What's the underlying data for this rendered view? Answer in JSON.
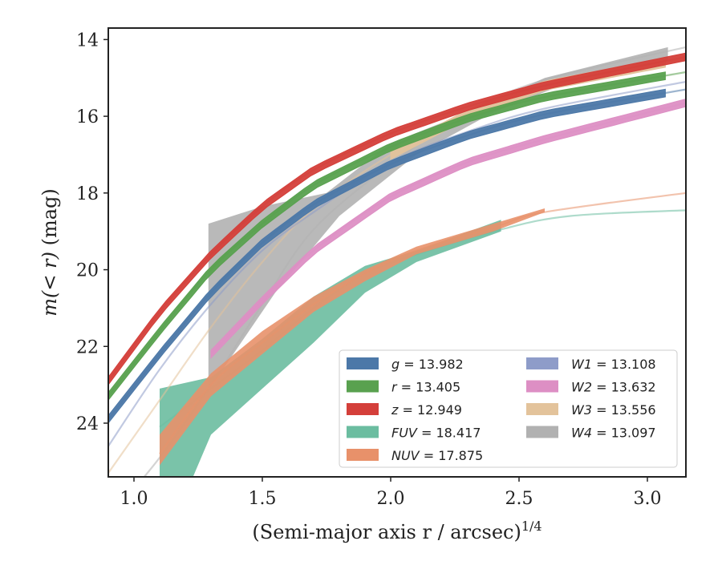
{
  "chart_data": {
    "type": "line",
    "xlabel": "(Semi-major axis r / arcsec)",
    "xlabel_sup": "1/4",
    "ylabel_pre": "m(< r)",
    "ylabel_post": "(mag)",
    "xlim": [
      0.9,
      3.15
    ],
    "ylim": [
      25.4,
      13.7
    ],
    "y_inverted": true,
    "xticks": [
      1.0,
      1.5,
      2.0,
      2.5,
      3.0
    ],
    "xtick_labels": [
      "1.0",
      "1.5",
      "2.0",
      "2.5",
      "3.0"
    ],
    "yticks": [
      14,
      16,
      18,
      20,
      22,
      24
    ],
    "ytick_labels": [
      "14",
      "16",
      "18",
      "20",
      "22",
      "24"
    ],
    "legend_position": "lower-right",
    "legend_columns": 2,
    "series": [
      {
        "name": "g = 13.982",
        "band": "g",
        "mag": "13.982",
        "color": "#4c78a8",
        "line": [
          [
            0.9,
            23.9
          ],
          [
            1.1,
            22.2
          ],
          [
            1.3,
            20.6
          ],
          [
            1.5,
            19.3
          ],
          [
            1.7,
            18.3
          ],
          [
            2.0,
            17.25
          ],
          [
            2.3,
            16.5
          ],
          [
            2.6,
            15.95
          ],
          [
            3.15,
            15.3
          ]
        ],
        "obs_x": [
          0.9,
          3.07
        ],
        "band_width": 0.1
      },
      {
        "name": "r = 13.405",
        "band": "r",
        "mag": "13.405",
        "color": "#59a14f",
        "line": [
          [
            0.9,
            23.3
          ],
          [
            1.1,
            21.6
          ],
          [
            1.3,
            20.0
          ],
          [
            1.5,
            18.8
          ],
          [
            1.7,
            17.8
          ],
          [
            2.0,
            16.8
          ],
          [
            2.3,
            16.05
          ],
          [
            2.6,
            15.5
          ],
          [
            3.15,
            14.85
          ]
        ],
        "obs_x": [
          0.9,
          3.07
        ],
        "band_width": 0.1
      },
      {
        "name": "z = 12.949",
        "band": "z",
        "mag": "12.949",
        "color": "#d43f3a",
        "line": [
          [
            0.9,
            22.9
          ],
          [
            1.1,
            21.1
          ],
          [
            1.3,
            19.6
          ],
          [
            1.5,
            18.35
          ],
          [
            1.7,
            17.4
          ],
          [
            2.0,
            16.45
          ],
          [
            2.3,
            15.75
          ],
          [
            2.6,
            15.2
          ],
          [
            3.15,
            14.45
          ]
        ],
        "obs_x": [
          0.9,
          3.15
        ],
        "band_width": 0.1
      },
      {
        "name": "FUV = 18.417",
        "band": "FUV",
        "mag": "18.417",
        "color": "#6bbda0",
        "line": [
          [
            1.1,
            24.1
          ],
          [
            1.3,
            23.1
          ],
          [
            1.5,
            22.1
          ],
          [
            1.7,
            21.0
          ],
          [
            1.9,
            20.1
          ],
          [
            2.1,
            19.6
          ],
          [
            2.43,
            18.95
          ],
          [
            2.7,
            18.6
          ],
          [
            3.15,
            18.45
          ]
        ],
        "obs_x": [
          1.1,
          2.43
        ],
        "band_upper": [
          [
            1.1,
            23.1
          ],
          [
            1.3,
            22.8
          ],
          [
            1.5,
            21.8
          ],
          [
            1.7,
            20.7
          ],
          [
            1.9,
            19.9
          ],
          [
            2.1,
            19.5
          ],
          [
            2.43,
            18.7
          ]
        ],
        "band_lower": [
          [
            1.1,
            25.4
          ],
          [
            1.23,
            25.4
          ],
          [
            1.3,
            24.3
          ],
          [
            1.5,
            23.1
          ],
          [
            1.7,
            21.9
          ],
          [
            1.9,
            20.6
          ],
          [
            2.1,
            19.8
          ],
          [
            2.43,
            19.0
          ]
        ]
      },
      {
        "name": "NUV = 17.875",
        "band": "NUV",
        "mag": "17.875",
        "color": "#e8916a",
        "line": [
          [
            1.1,
            24.8
          ],
          [
            1.3,
            23.0
          ],
          [
            1.5,
            21.9
          ],
          [
            1.7,
            20.9
          ],
          [
            1.9,
            20.1
          ],
          [
            2.1,
            19.5
          ],
          [
            2.4,
            18.9
          ],
          [
            2.6,
            18.5
          ],
          [
            3.15,
            18.0
          ]
        ],
        "obs_x": [
          1.1,
          2.6
        ],
        "band_upper": [
          [
            1.1,
            24.3
          ],
          [
            1.3,
            22.7
          ],
          [
            1.5,
            21.6
          ],
          [
            1.7,
            20.7
          ],
          [
            1.9,
            20.0
          ],
          [
            2.1,
            19.4
          ],
          [
            2.4,
            18.8
          ],
          [
            2.6,
            18.4
          ]
        ],
        "band_lower": [
          [
            1.1,
            25.1
          ],
          [
            1.3,
            23.3
          ],
          [
            1.5,
            22.2
          ],
          [
            1.7,
            21.1
          ],
          [
            1.9,
            20.3
          ],
          [
            2.1,
            19.6
          ],
          [
            2.4,
            19.0
          ],
          [
            2.6,
            18.5
          ]
        ]
      },
      {
        "name": "W1 = 13.108",
        "band": "W1",
        "mag": "13.108",
        "color": "#8e9cc9",
        "line": [
          [
            0.9,
            24.6
          ],
          [
            1.1,
            22.6
          ],
          [
            1.3,
            20.9
          ],
          [
            1.5,
            19.5
          ],
          [
            1.7,
            18.5
          ],
          [
            2.0,
            17.2
          ],
          [
            2.3,
            16.4
          ],
          [
            2.6,
            15.8
          ],
          [
            3.15,
            15.1
          ]
        ],
        "obs_x": null
      },
      {
        "name": "W2 = 13.632",
        "band": "W2",
        "mag": "13.632",
        "color": "#dd8fc4",
        "line": [
          [
            1.3,
            22.2
          ],
          [
            1.5,
            20.8
          ],
          [
            1.7,
            19.5
          ],
          [
            2.0,
            18.1
          ],
          [
            2.3,
            17.2
          ],
          [
            2.6,
            16.6
          ],
          [
            3.15,
            15.65
          ]
        ],
        "obs_x": [
          1.3,
          3.15
        ],
        "band_width": 0.1
      },
      {
        "name": "W3 = 13.556",
        "band": "W3",
        "mag": "13.556",
        "color": "#e3c39b",
        "line": [
          [
            0.9,
            25.3
          ],
          [
            1.1,
            23.4
          ],
          [
            1.3,
            21.5
          ],
          [
            1.5,
            19.8
          ],
          [
            1.7,
            18.4
          ],
          [
            2.0,
            17.0
          ],
          [
            2.3,
            15.95
          ],
          [
            2.6,
            15.2
          ],
          [
            3.15,
            14.5
          ]
        ],
        "obs_x": [
          2.0,
          3.07
        ],
        "band_width": 0.12
      },
      {
        "name": "W4 = 13.097",
        "band": "W4",
        "mag": "13.097",
        "color": "#b1b1b1",
        "line": [
          [
            0.9,
            26.5
          ],
          [
            1.1,
            24.9
          ],
          [
            1.3,
            23.0
          ],
          [
            1.5,
            20.9
          ],
          [
            1.7,
            18.95
          ],
          [
            2.0,
            17.25
          ],
          [
            2.3,
            15.9
          ],
          [
            2.6,
            15.05
          ],
          [
            3.15,
            14.2
          ]
        ],
        "obs_x": null,
        "band_upper": [
          [
            1.29,
            18.8
          ],
          [
            1.5,
            18.35
          ],
          [
            1.75,
            18.0
          ],
          [
            2.0,
            16.7
          ],
          [
            2.3,
            15.9
          ],
          [
            2.6,
            15.0
          ],
          [
            2.9,
            14.5
          ],
          [
            3.08,
            14.2
          ]
        ],
        "band_lower": [
          [
            1.29,
            23.15
          ],
          [
            1.55,
            20.6
          ],
          [
            1.8,
            18.6
          ],
          [
            2.1,
            17.0
          ],
          [
            2.4,
            15.9
          ],
          [
            2.7,
            15.1
          ],
          [
            2.9,
            14.75
          ],
          [
            3.08,
            14.55
          ]
        ]
      }
    ]
  }
}
